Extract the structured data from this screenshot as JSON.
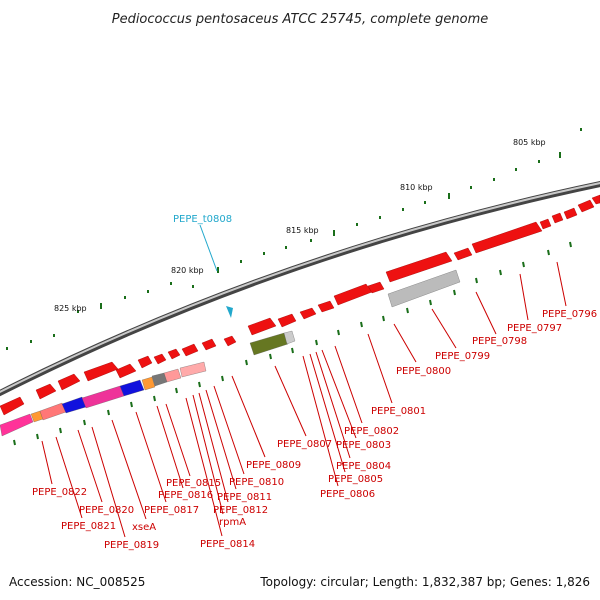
{
  "title": "Pediococcus pentosaceus ATCC 25745, complete genome",
  "accession": "Accession: NC_008525",
  "summary": "Topology: circular; Length: 1,832,387 bp; Genes: 1,826",
  "colors": {
    "cds": "#ee1111",
    "label": "#cc0000",
    "trna": "#22a8cc",
    "tick": "#1a6e1a",
    "backbone": "#8a8a8a"
  },
  "scale": {
    "labels": [
      "805 kbp",
      "810 kbp",
      "815 kbp",
      "820 kbp",
      "825 kbp"
    ]
  },
  "trna": {
    "label": "PEPE_t0808"
  },
  "genes": [
    {
      "label": "PEPE_0796"
    },
    {
      "label": "PEPE_0797"
    },
    {
      "label": "PEPE_0798"
    },
    {
      "label": "PEPE_0799"
    },
    {
      "label": "PEPE_0800"
    },
    {
      "label": "PEPE_0801"
    },
    {
      "label": "PEPE_0802"
    },
    {
      "label": "PEPE_0803"
    },
    {
      "label": "PEPE_0804"
    },
    {
      "label": "PEPE_0805"
    },
    {
      "label": "PEPE_0806"
    },
    {
      "label": "PEPE_0807"
    },
    {
      "label": "PEPE_0809"
    },
    {
      "label": "PEPE_0810"
    },
    {
      "label": "PEPE_0811"
    },
    {
      "label": "PEPE_0812"
    },
    {
      "label": "rpmA"
    },
    {
      "label": "PEPE_0814"
    },
    {
      "label": "PEPE_0815"
    },
    {
      "label": "PEPE_0816"
    },
    {
      "label": "PEPE_0817"
    },
    {
      "label": "xseA"
    },
    {
      "label": "PEPE_0819"
    },
    {
      "label": "PEPE_0820"
    },
    {
      "label": "PEPE_0821"
    },
    {
      "label": "PEPE_0822"
    }
  ]
}
